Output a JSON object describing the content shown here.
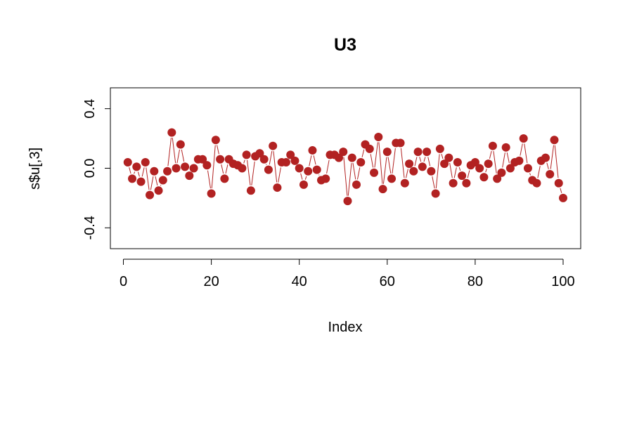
{
  "chart_data": {
    "type": "line",
    "title": "U3",
    "xlabel": "Index",
    "ylabel": "s$u[,3]",
    "xlim": [
      -2.96,
      104
    ],
    "ylim": [
      -0.54,
      0.54
    ],
    "x_ticks": [
      0,
      20,
      40,
      60,
      80,
      100
    ],
    "x_tick_labels": [
      "0",
      "20",
      "40",
      "60",
      "80",
      "100"
    ],
    "y_ticks": [
      -0.4,
      0.0,
      0.4
    ],
    "y_tick_labels": [
      "-0.4",
      "0.0",
      "0.4"
    ],
    "grid": false,
    "series": [
      {
        "color": "#b22222",
        "marker": "filled-circle",
        "line_style": "broken",
        "x": [
          1,
          2,
          3,
          4,
          5,
          6,
          7,
          8,
          9,
          10,
          11,
          12,
          13,
          14,
          15,
          16,
          17,
          18,
          19,
          20,
          21,
          22,
          23,
          24,
          25,
          26,
          27,
          28,
          29,
          30,
          31,
          32,
          33,
          34,
          35,
          36,
          37,
          38,
          39,
          40,
          41,
          42,
          43,
          44,
          45,
          46,
          47,
          48,
          49,
          50,
          51,
          52,
          53,
          54,
          55,
          56,
          57,
          58,
          59,
          60,
          61,
          62,
          63,
          64,
          65,
          66,
          67,
          68,
          69,
          70,
          71,
          72,
          73,
          74,
          75,
          76,
          77,
          78,
          79,
          80,
          81,
          82,
          83,
          84,
          85,
          86,
          87,
          88,
          89,
          90,
          91,
          92,
          93,
          94,
          95,
          96,
          97,
          98,
          99,
          100
        ],
        "y": [
          0.04,
          -0.07,
          0.01,
          -0.09,
          0.04,
          -0.18,
          -0.02,
          -0.15,
          -0.08,
          -0.02,
          0.24,
          0.0,
          0.16,
          0.01,
          -0.05,
          0.0,
          0.06,
          0.06,
          0.02,
          -0.17,
          0.19,
          0.06,
          -0.07,
          0.06,
          0.03,
          0.02,
          0.0,
          0.09,
          -0.15,
          0.08,
          0.1,
          0.06,
          -0.01,
          0.15,
          -0.13,
          0.04,
          0.04,
          0.09,
          0.05,
          0.0,
          -0.11,
          -0.02,
          0.12,
          -0.01,
          -0.08,
          -0.07,
          0.09,
          0.09,
          0.07,
          0.11,
          -0.22,
          0.07,
          -0.11,
          0.04,
          0.16,
          0.13,
          -0.03,
          0.21,
          -0.14,
          0.11,
          -0.07,
          0.17,
          0.17,
          -0.1,
          0.03,
          -0.02,
          0.11,
          0.01,
          0.11,
          -0.02,
          -0.17,
          0.13,
          0.03,
          0.07,
          -0.1,
          0.04,
          -0.05,
          -0.1,
          0.02,
          0.04,
          0.0,
          -0.06,
          0.03,
          0.15,
          -0.07,
          -0.03,
          0.14,
          0.0,
          0.04,
          0.05,
          0.2,
          0.0,
          -0.08,
          -0.1,
          0.05,
          0.07,
          -0.04,
          0.19,
          -0.1,
          -0.2
        ]
      }
    ]
  }
}
